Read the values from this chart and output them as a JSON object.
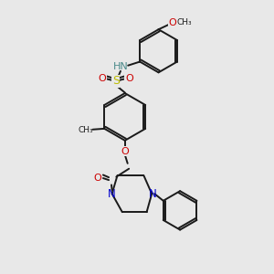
{
  "bg_color": "#e8e8e8",
  "bond_color": "#1a1a1a",
  "bond_width": 1.4,
  "atom_colors": {
    "N": "#0000cc",
    "O": "#cc0000",
    "S": "#bbbb00",
    "HN": "#4a8a8a",
    "C": "#1a1a1a"
  },
  "figsize": [
    3.0,
    3.0
  ],
  "dpi": 100,
  "xlim": [
    0,
    10
  ],
  "ylim": [
    0,
    10
  ]
}
